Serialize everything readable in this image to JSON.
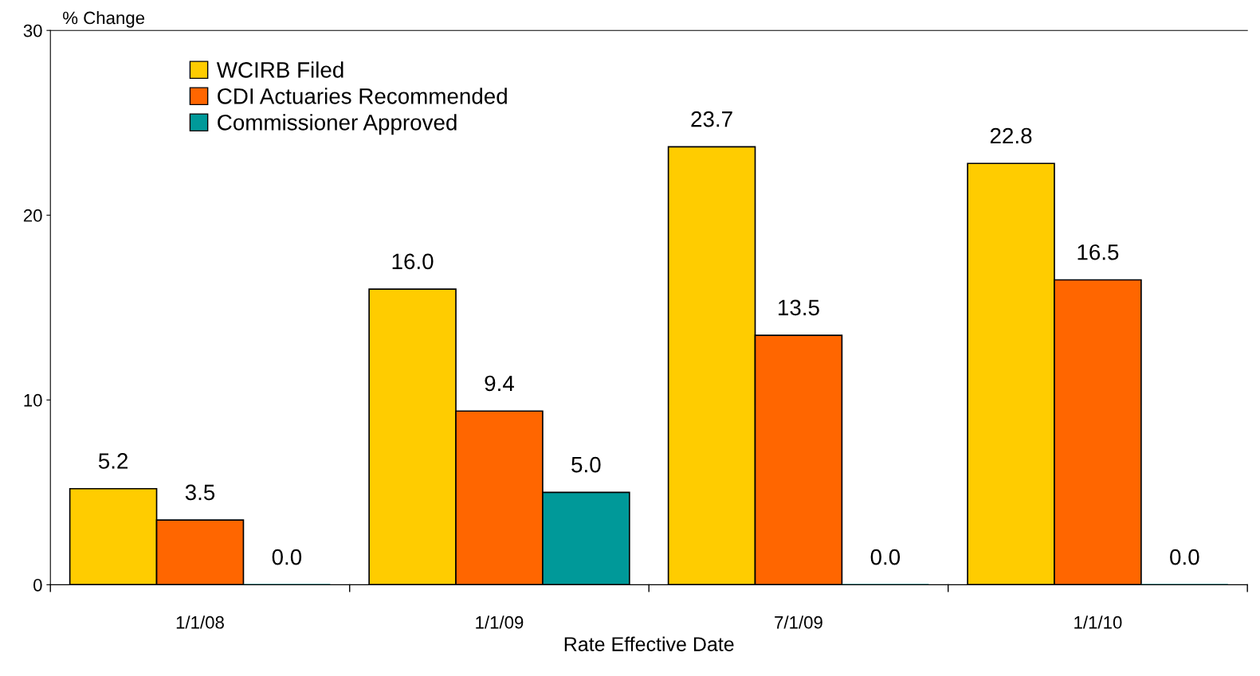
{
  "chart_data": {
    "type": "bar",
    "ylabel": "% Change",
    "xlabel": "Rate Effective Date",
    "categories": [
      "1/1/08",
      "1/1/09",
      "7/1/09",
      "1/1/10"
    ],
    "series": [
      {
        "name": "WCIRB Filed",
        "color": "#ffcc00",
        "values": [
          5.2,
          16.0,
          23.7,
          22.8
        ],
        "value_labels": [
          "5.2",
          "16.0",
          "23.7",
          "22.8"
        ]
      },
      {
        "name": "CDI Actuaries Recommended",
        "color": "#ff6600",
        "values": [
          3.5,
          9.4,
          13.5,
          16.5
        ],
        "value_labels": [
          "3.5",
          "9.4",
          "13.5",
          "16.5"
        ]
      },
      {
        "name": "Commissioner Approved",
        "color": "#009999",
        "values": [
          0.0,
          5.0,
          0.0,
          0.0
        ],
        "value_labels": [
          "0.0",
          "5.0",
          "0.0",
          "0.0"
        ]
      }
    ],
    "ylim": [
      0,
      30
    ],
    "yticks": [
      0,
      10,
      20,
      30
    ],
    "grid": false,
    "legend": "top left"
  }
}
